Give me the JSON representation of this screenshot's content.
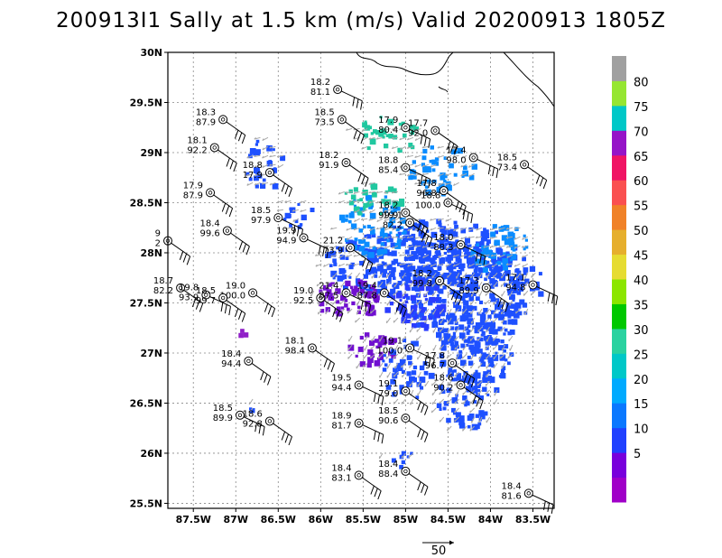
{
  "title": "200913I1 Sally at 1.5 km (m/s) Valid 20200913 1805Z",
  "map": {
    "lon_range": [
      -87.8,
      -83.25
    ],
    "lat_range": [
      25.45,
      30.0
    ],
    "x_ticks": [
      "87.5W",
      "87W",
      "86.5W",
      "86W",
      "85.5W",
      "85W",
      "84.5W",
      "84W",
      "83.5W"
    ],
    "x_tick_values": [
      -87.5,
      -87,
      -86.5,
      -86,
      -85.5,
      -85,
      -84.5,
      -84,
      -83.5
    ],
    "y_ticks": [
      "30N",
      "29.5N",
      "29N",
      "28.5N",
      "28N",
      "27.5N",
      "27N",
      "26.5N",
      "26N",
      "25.5N"
    ],
    "y_tick_values": [
      30,
      29.5,
      29,
      28.5,
      28,
      27.5,
      27,
      26.5,
      26,
      25.5
    ],
    "grid": true
  },
  "colorbar": {
    "labels": [
      "5",
      "10",
      "15",
      "20",
      "25",
      "30",
      "35",
      "40",
      "45",
      "50",
      "55",
      "60",
      "65",
      "70",
      "75",
      "80"
    ],
    "colors": [
      "#a000c8",
      "#6e00dc",
      "#1e3cff",
      "#00a0ff",
      "#00c8c8",
      "#3cd296",
      "#00dc00",
      "#32e632",
      "#c8dc32",
      "#e6af2d",
      "#f08228",
      "#f05a28",
      "#fa3c3c",
      "#f00082",
      "#a000c8",
      "#00d2b4",
      "#a0e632",
      "#a0a0a0"
    ]
  },
  "reference_vector": {
    "label": "50"
  },
  "stations": [
    {
      "lat": 29.63,
      "lon": -85.8,
      "speed": "18.2",
      "value": "81.1"
    },
    {
      "lat": 29.33,
      "lon": -87.15,
      "speed": "18.3",
      "value": "87.9"
    },
    {
      "lat": 29.33,
      "lon": -85.75,
      "speed": "18.5",
      "value": "73.5"
    },
    {
      "lat": 29.25,
      "lon": -85.0,
      "speed": "17.9",
      "value": "80.4"
    },
    {
      "lat": 29.22,
      "lon": -84.65,
      "speed": "17.7",
      "value": "92.0"
    },
    {
      "lat": 29.05,
      "lon": -87.25,
      "speed": "18.1",
      "value": "92.2"
    },
    {
      "lat": 28.95,
      "lon": -84.2,
      "speed": "17.4",
      "value": "98.0"
    },
    {
      "lat": 28.88,
      "lon": -83.6,
      "speed": "18.5",
      "value": "73.4"
    },
    {
      "lat": 28.9,
      "lon": -85.7,
      "speed": "18.2",
      "value": "91.9"
    },
    {
      "lat": 28.85,
      "lon": -85.0,
      "speed": "18.8",
      "value": "85.4"
    },
    {
      "lat": 28.8,
      "lon": -86.6,
      "speed": "18.8",
      "value": "17.9"
    },
    {
      "lat": 28.62,
      "lon": -84.55,
      "speed": "17.8",
      "value": "96.8"
    },
    {
      "lat": 28.5,
      "lon": -84.5,
      "speed": "18.8",
      "value": "100.0"
    },
    {
      "lat": 28.6,
      "lon": -87.3,
      "speed": "17.9",
      "value": "87.9"
    },
    {
      "lat": 28.4,
      "lon": -85.0,
      "speed": "18.2",
      "value": "99.9"
    },
    {
      "lat": 28.35,
      "lon": -86.5,
      "speed": "18.5",
      "value": "97.9"
    },
    {
      "lat": 28.3,
      "lon": -84.95,
      "speed": "19.1",
      "value": "82.2"
    },
    {
      "lat": 28.22,
      "lon": -87.1,
      "speed": "18.4",
      "value": "99.6"
    },
    {
      "lat": 28.15,
      "lon": -86.2,
      "speed": "19.9",
      "value": "94.9"
    },
    {
      "lat": 28.12,
      "lon": -87.8,
      "speed": "9",
      "value": "2"
    },
    {
      "lat": 28.05,
      "lon": -85.65,
      "speed": "21.2",
      "value": "73.9"
    },
    {
      "lat": 28.08,
      "lon": -84.35,
      "speed": "18.0",
      "value": "88.3"
    },
    {
      "lat": 27.72,
      "lon": -84.6,
      "speed": "18.2",
      "value": "99.8"
    },
    {
      "lat": 27.65,
      "lon": -84.05,
      "speed": "17.3",
      "value": "89.9"
    },
    {
      "lat": 27.68,
      "lon": -83.5,
      "speed": "17.1",
      "value": "94.8"
    },
    {
      "lat": 27.65,
      "lon": -87.65,
      "speed": "18.7",
      "value": "82.2"
    },
    {
      "lat": 27.6,
      "lon": -86.8,
      "speed": "19.0",
      "value": "100.0"
    },
    {
      "lat": 27.58,
      "lon": -87.35,
      "speed": "19.8",
      "value": "93.9"
    },
    {
      "lat": 27.55,
      "lon": -87.15,
      "speed": "18.5",
      "value": "99.7"
    },
    {
      "lat": 27.55,
      "lon": -86.0,
      "speed": "19.0",
      "value": "92.5"
    },
    {
      "lat": 27.6,
      "lon": -85.7,
      "speed": "21.4",
      "value": "87.5"
    },
    {
      "lat": 27.6,
      "lon": -85.25,
      "speed": "19.4",
      "value": "87.8"
    },
    {
      "lat": 27.05,
      "lon": -86.1,
      "speed": "18.1",
      "value": "98.4"
    },
    {
      "lat": 27.05,
      "lon": -84.95,
      "speed": "19.1",
      "value": "100.0"
    },
    {
      "lat": 26.92,
      "lon": -86.85,
      "speed": "18.4",
      "value": "94.4"
    },
    {
      "lat": 26.9,
      "lon": -84.45,
      "speed": "17.8",
      "value": "96.7"
    },
    {
      "lat": 26.68,
      "lon": -85.55,
      "speed": "19.5",
      "value": "94.4"
    },
    {
      "lat": 26.68,
      "lon": -84.35,
      "speed": "18.6",
      "value": "90.2"
    },
    {
      "lat": 26.62,
      "lon": -85.0,
      "speed": "19.1",
      "value": "79.0"
    },
    {
      "lat": 26.38,
      "lon": -86.95,
      "speed": "18.5",
      "value": "89.9"
    },
    {
      "lat": 26.32,
      "lon": -86.6,
      "speed": "18.6",
      "value": "92.8"
    },
    {
      "lat": 26.35,
      "lon": -85.0,
      "speed": "18.5",
      "value": "90.6"
    },
    {
      "lat": 26.3,
      "lon": -85.55,
      "speed": "18.9",
      "value": "81.7"
    },
    {
      "lat": 25.82,
      "lon": -85.0,
      "speed": "18.4",
      "value": "88.4"
    },
    {
      "lat": 25.78,
      "lon": -85.55,
      "speed": "18.4",
      "value": "83.1"
    },
    {
      "lat": 25.6,
      "lon": -83.55,
      "speed": "18.4",
      "value": "81.6"
    }
  ]
}
